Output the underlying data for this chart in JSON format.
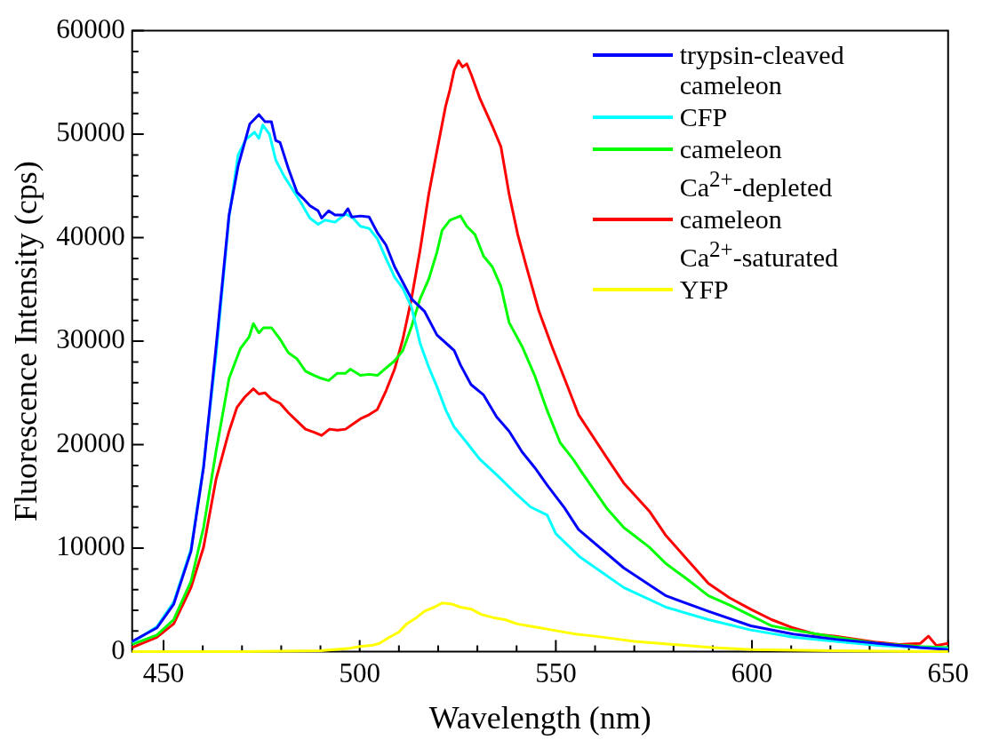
{
  "chart_data": {
    "type": "line",
    "xlabel": "Wavelength (nm)",
    "ylabel": "Fluorescence Intensity (cps)",
    "xlim": [
      442,
      650
    ],
    "ylim": [
      0,
      60000
    ],
    "xticks": [
      450,
      {
        "value": 460,
        "label": null
      },
      {
        "value": 470,
        "label": null
      },
      {
        "value": 480,
        "label": null
      },
      {
        "value": 490,
        "label": null
      },
      500,
      {
        "value": 510,
        "label": null
      },
      {
        "value": 520,
        "label": null
      },
      {
        "value": 530,
        "label": null
      },
      {
        "value": 540,
        "label": null
      },
      550,
      {
        "value": 560,
        "label": null
      },
      {
        "value": 570,
        "label": null
      },
      {
        "value": 580,
        "label": null
      },
      {
        "value": 590,
        "label": null
      },
      600,
      {
        "value": 610,
        "label": null
      },
      {
        "value": 620,
        "label": null
      },
      {
        "value": 630,
        "label": null
      },
      {
        "value": 640,
        "label": null
      },
      650
    ],
    "yticks": [
      0,
      {
        "value": 2000,
        "label": null
      },
      {
        "value": 4000,
        "label": null
      },
      {
        "value": 6000,
        "label": null
      },
      {
        "value": 8000,
        "label": null
      },
      10000,
      {
        "value": 12000,
        "label": null
      },
      {
        "value": 14000,
        "label": null
      },
      {
        "value": 16000,
        "label": null
      },
      {
        "value": 18000,
        "label": null
      },
      20000,
      {
        "value": 22000,
        "label": null
      },
      {
        "value": 24000,
        "label": null
      },
      {
        "value": 26000,
        "label": null
      },
      {
        "value": 28000,
        "label": null
      },
      30000,
      {
        "value": 32000,
        "label": null
      },
      {
        "value": 34000,
        "label": null
      },
      {
        "value": 36000,
        "label": null
      },
      {
        "value": 38000,
        "label": null
      },
      40000,
      {
        "value": 42000,
        "label": null
      },
      {
        "value": 44000,
        "label": null
      },
      {
        "value": 46000,
        "label": null
      },
      {
        "value": 48000,
        "label": null
      },
      50000,
      {
        "value": 52000,
        "label": null
      },
      {
        "value": 54000,
        "label": null
      },
      {
        "value": 56000,
        "label": null
      },
      {
        "value": 58000,
        "label": null
      },
      60000
    ],
    "grid": false,
    "legend": "top right",
    "marker": "none",
    "line_style": "solid",
    "series": [
      {
        "name": "trypsin-cleaved cameleon",
        "color": "#0000ff",
        "x": [
          442,
          448.3,
          452.6,
          457,
          460.2,
          463.4,
          466.7,
          469,
          472,
          474.3,
          475.9,
          477.5,
          478.6,
          479.7,
          481.8,
          484,
          485.6,
          487.3,
          489.4,
          490.3,
          492.1,
          493.7,
          495.9,
          497,
          498,
          500.2,
          502.4,
          504.5,
          506.7,
          508.9,
          511,
          513.2,
          516.5,
          519.7,
          524.1,
          525.7,
          528.4,
          531.6,
          534.9,
          538.1,
          541.4,
          544.6,
          547.8,
          552.2,
          555.8,
          567.3,
          578.1,
          588.9,
          599.7,
          610.5,
          621.3,
          632.1,
          642.9,
          650
        ],
        "values": [
          1000,
          2300,
          4600,
          9700,
          17800,
          29500,
          42200,
          46900,
          51000,
          51900,
          51200,
          51200,
          49400,
          49200,
          46700,
          44400,
          43800,
          43100,
          42600,
          41900,
          42600,
          42200,
          42200,
          42800,
          42000,
          42100,
          42000,
          40500,
          39300,
          37200,
          35700,
          34100,
          32900,
          30600,
          29100,
          27700,
          25800,
          24800,
          22700,
          21300,
          19300,
          17800,
          16100,
          13900,
          11800,
          8100,
          5400,
          3900,
          2500,
          1700,
          1200,
          800,
          400,
          200
        ]
      },
      {
        "name": "CFP",
        "color": "#00ffff",
        "x": [
          442,
          448.3,
          452.6,
          457,
          460.2,
          463.4,
          466.7,
          469,
          471,
          473.2,
          474.3,
          475.3,
          477,
          478.6,
          480.8,
          483,
          485,
          487.3,
          489.4,
          491.2,
          493.7,
          496.4,
          498.3,
          500.2,
          502.4,
          504.5,
          506.7,
          508.9,
          511,
          513.2,
          515.4,
          517.6,
          519.7,
          522,
          524.1,
          527.3,
          530.6,
          534.9,
          539.2,
          543.5,
          547.8,
          550,
          556,
          567.3,
          578.1,
          588.9,
          599.7,
          610.5,
          621.3,
          632.1,
          642.9,
          650
        ],
        "values": [
          900,
          2400,
          4800,
          9900,
          18000,
          28700,
          42000,
          48000,
          49500,
          50200,
          49600,
          50900,
          50000,
          47500,
          45900,
          44600,
          43400,
          41900,
          41300,
          41700,
          41500,
          42300,
          41900,
          41100,
          40900,
          39900,
          38000,
          36200,
          35100,
          33300,
          29800,
          27500,
          25600,
          23300,
          21700,
          20200,
          18600,
          17100,
          15500,
          14000,
          13200,
          11400,
          9200,
          6200,
          4300,
          3100,
          2100,
          1400,
          1000,
          600,
          400,
          300
        ]
      },
      {
        "name": "cameleon Ca$^{2+}$-depleted",
        "color": "#00ff00",
        "x": [
          442,
          448.3,
          452.6,
          457,
          460.2,
          463.4,
          466.7,
          469.6,
          471.8,
          472.9,
          474.3,
          475.5,
          477.5,
          479.7,
          481.8,
          484,
          486.2,
          488.4,
          490.3,
          492.1,
          494.3,
          496.4,
          497.6,
          500.2,
          502.4,
          504.5,
          506.7,
          508.9,
          511,
          513.2,
          515.4,
          517.6,
          519.7,
          521,
          523,
          525.7,
          527.3,
          529.4,
          531.6,
          533.8,
          536,
          538.1,
          541.4,
          544.6,
          547.8,
          551.1,
          554.4,
          556.5,
          562.9,
          567.3,
          573.8,
          578.1,
          583.5,
          588.9,
          594.3,
          599.7,
          605,
          610.5,
          621.3,
          632.1,
          642.9,
          650
        ],
        "values": [
          700,
          1600,
          3100,
          6800,
          12000,
          19400,
          26400,
          29300,
          30400,
          31700,
          30800,
          31300,
          31300,
          30200,
          28900,
          28300,
          27100,
          26700,
          26400,
          26200,
          26900,
          26900,
          27300,
          26700,
          26800,
          26700,
          27400,
          28100,
          29100,
          31400,
          34100,
          36000,
          38600,
          40700,
          41700,
          42100,
          41100,
          40300,
          38200,
          37200,
          35300,
          31800,
          29500,
          26700,
          23300,
          20200,
          18600,
          17400,
          13900,
          12000,
          10100,
          8500,
          7000,
          5400,
          4500,
          3500,
          2500,
          2100,
          1400,
          800,
          500,
          400
        ]
      },
      {
        "name": "cameleon Ca$^{2+}$-saturated",
        "color": "#ff0000",
        "x": [
          442,
          448.3,
          452.6,
          457,
          460.2,
          463.4,
          466.7,
          468.7,
          470.7,
          472.9,
          474.3,
          475.9,
          477.5,
          479.7,
          481.8,
          484,
          486.2,
          488.4,
          490.3,
          492.3,
          494.3,
          496.4,
          498.3,
          500.2,
          502.4,
          504.5,
          506.7,
          508.9,
          511,
          513.2,
          515.4,
          517.6,
          519.7,
          521.9,
          523,
          524.1,
          525.2,
          526.2,
          527.3,
          528.4,
          530.6,
          533.8,
          536,
          538.1,
          540.3,
          542.5,
          545.7,
          549,
          552.2,
          555.8,
          562.9,
          567.3,
          573.8,
          578.1,
          583.5,
          588.9,
          594.3,
          599.7,
          605,
          610.5,
          616,
          621.3,
          626.7,
          632.1,
          637.5,
          642.9,
          645,
          647,
          650
        ],
        "values": [
          400,
          1400,
          2700,
          6200,
          10100,
          16700,
          21300,
          23600,
          24600,
          25400,
          24900,
          25000,
          24400,
          24000,
          23100,
          22300,
          21500,
          21200,
          20900,
          21500,
          21400,
          21500,
          22000,
          22500,
          22900,
          23400,
          25200,
          27300,
          30200,
          34100,
          38800,
          44200,
          48400,
          52700,
          54300,
          56200,
          57100,
          56500,
          56800,
          55800,
          53500,
          50800,
          48800,
          44200,
          40300,
          37200,
          32900,
          29500,
          26400,
          22900,
          18800,
          16300,
          13600,
          11200,
          8900,
          6600,
          5200,
          4100,
          3100,
          2300,
          1700,
          1500,
          1200,
          900,
          700,
          800,
          1500,
          600,
          800
        ]
      },
      {
        "name": "YFP",
        "color": "#ffff00",
        "x": [
          442,
          470,
          490,
          497,
          500,
          503,
          505,
          507.6,
          510,
          512,
          514.5,
          516.5,
          519,
          521,
          523.5,
          525.7,
          528.5,
          531,
          534,
          537,
          540,
          543,
          546,
          549,
          555,
          560,
          570,
          580,
          590,
          600,
          620,
          650
        ],
        "values": [
          0,
          0,
          100,
          300,
          500,
          600,
          800,
          1400,
          1900,
          2700,
          3300,
          3900,
          4300,
          4700,
          4600,
          4300,
          4100,
          3600,
          3300,
          3100,
          2700,
          2500,
          2300,
          2100,
          1700,
          1500,
          1000,
          700,
          400,
          200,
          100,
          0
        ]
      }
    ]
  }
}
